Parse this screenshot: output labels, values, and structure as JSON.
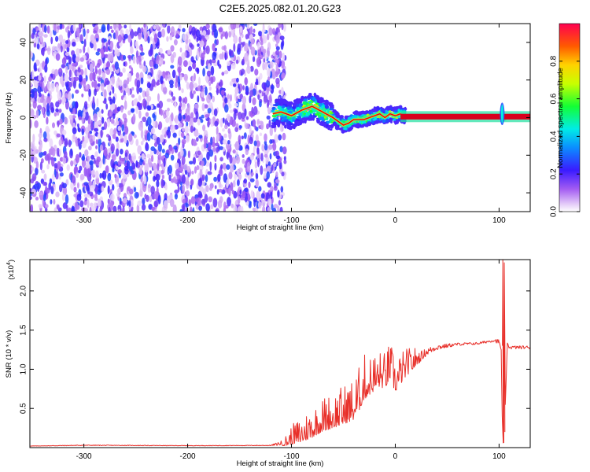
{
  "title": "C2E5.2025.082.01.20.G23",
  "colors": {
    "snr_line": "#e8302a",
    "ridge": "#d8001c",
    "noise_purple": "#7a2cf0",
    "frame": "#000000"
  },
  "chart_data": [
    {
      "type": "heatmap",
      "title": "C2E5.2025.082.01.20.G23",
      "xlabel": "Height of straight line (km)",
      "ylabel": "Frequency (Hz)",
      "xlim": [
        -352,
        130
      ],
      "ylim": [
        -50,
        50
      ],
      "x_ticks": [
        -300,
        -200,
        -100,
        0,
        100
      ],
      "x_tick_labels": [
        "-300",
        "-200",
        "-100",
        "0",
        "100"
      ],
      "y_ticks": [
        -40,
        -20,
        0,
        20,
        40
      ],
      "y_tick_labels": [
        "-40",
        "-20",
        "0",
        "20",
        "40"
      ],
      "colorbar": {
        "label": "Normalized spectral amplitude",
        "range": [
          0,
          1
        ],
        "ticks": [
          0.0,
          0.2,
          0.4,
          0.6,
          0.8
        ],
        "tick_labels": [
          "0.0",
          "0.2",
          "0.4",
          "0.6",
          "0.8"
        ],
        "colormap": "rainbow (white-violet-blue-cyan-green-yellow-orange-red)"
      },
      "regions": [
        {
          "name": "noise",
          "x_range": [
            -352,
            -112
          ],
          "freq_range": [
            -50,
            50
          ],
          "amplitude": [
            0.0,
            0.25
          ]
        },
        {
          "name": "transition",
          "x_range": [
            -118,
            10
          ],
          "freq_range": [
            -12,
            10
          ],
          "amplitude": [
            0.2,
            1.0
          ]
        },
        {
          "name": "carrier",
          "x_range": [
            5,
            130
          ],
          "freq_range": [
            -1,
            2
          ],
          "amplitude": [
            0.9,
            1.0
          ]
        }
      ],
      "ridge": {
        "x": [
          -118,
          -110,
          -100,
          -90,
          -80,
          -70,
          -60,
          -55,
          -50,
          -45,
          -40,
          -30,
          -20,
          -15,
          -10,
          -5,
          0,
          5,
          10,
          20,
          40,
          60,
          80,
          100,
          104,
          110,
          130
        ],
        "freq": [
          2,
          3,
          1,
          4,
          6,
          3,
          0,
          -2,
          -4,
          -3,
          -1,
          -1,
          1,
          2,
          0,
          2,
          1,
          2,
          1,
          1,
          1,
          1,
          1,
          1,
          -1,
          1,
          1
        ]
      },
      "spike": {
        "x": 103,
        "freq_range": [
          -4,
          8
        ]
      },
      "grid": false
    },
    {
      "type": "line",
      "xlabel": "Height of straight line (km)",
      "ylabel": "SNR (10 * v/v)",
      "y_multiplier_label": "(x10",
      "y_multiplier_exp": "4",
      "xlim": [
        -352,
        130
      ],
      "ylim": [
        0,
        24000
      ],
      "x_ticks": [
        -300,
        -200,
        -100,
        0,
        100
      ],
      "x_tick_labels": [
        "-300",
        "-200",
        "-100",
        "0",
        "100"
      ],
      "y_ticks": [
        5000,
        10000,
        15000,
        20000
      ],
      "y_tick_labels": [
        "0.5",
        "1.0",
        "1.5",
        "2.0"
      ],
      "series": [
        {
          "x": [
            -352,
            -300,
            -200,
            -120,
            -105,
            -100,
            -90,
            -80,
            -70,
            -60,
            -50,
            -40,
            -35,
            -30,
            -25,
            -20,
            -15,
            -10,
            -5,
            0,
            5,
            10,
            20,
            30,
            40,
            60,
            80,
            95,
            100,
            102,
            103,
            104,
            105,
            106,
            108,
            110,
            130
          ],
          "y": [
            200,
            300,
            250,
            280,
            700,
            1200,
            1800,
            2600,
            3500,
            4000,
            4600,
            5300,
            6500,
            8000,
            8400,
            8900,
            9300,
            9000,
            10300,
            8500,
            9400,
            10200,
            11200,
            12200,
            12800,
            13200,
            13300,
            13700,
            13500,
            12500,
            4000,
            600,
            23600,
            5500,
            13200,
            12800,
            12800
          ],
          "noise": [
            40,
            90,
            50,
            80,
            900,
            1500,
            2200,
            2600,
            2800,
            3000,
            3200,
            3500,
            3600,
            3700,
            3300,
            3200,
            3000,
            3000,
            3000,
            2800,
            2600,
            2300,
            1600,
            1000,
            700,
            350,
            300,
            400,
            600,
            0,
            0,
            0,
            0,
            0,
            600,
            400,
            400
          ],
          "color": "#e8302a"
        }
      ],
      "grid": false
    }
  ]
}
